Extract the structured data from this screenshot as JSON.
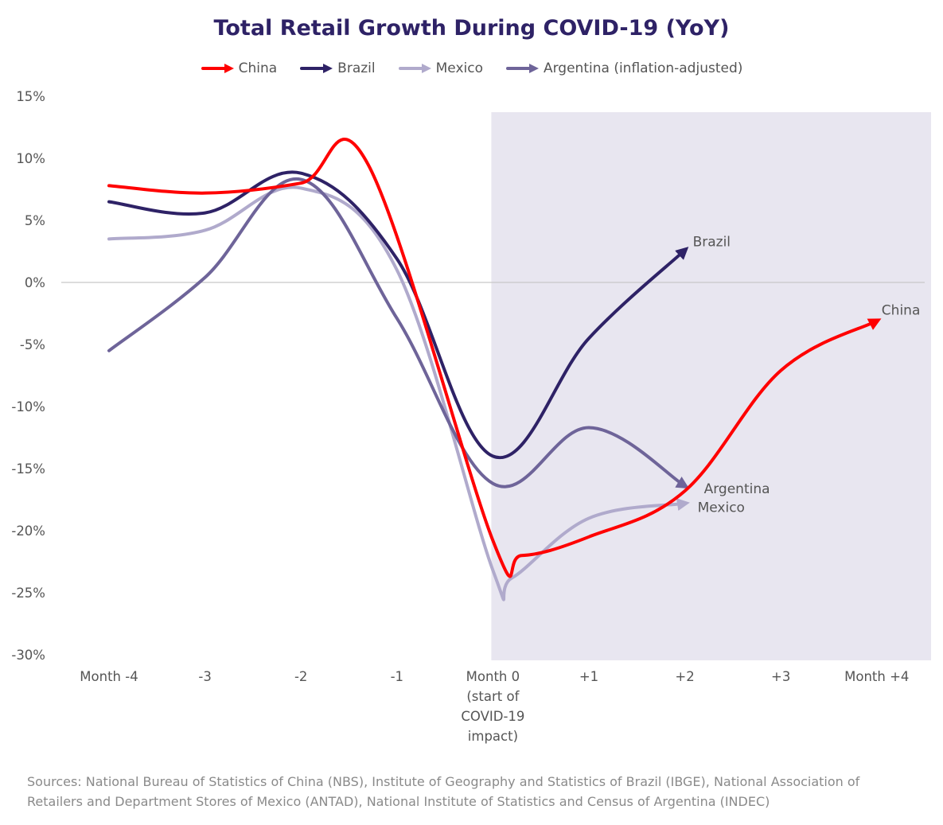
{
  "chart_data": {
    "type": "line",
    "title": "Total Retail Growth During COVID-19 (YoY)",
    "xlabel": "",
    "ylabel": "",
    "x_ticks": [
      {
        "value": -4,
        "lines": [
          "Month -4"
        ]
      },
      {
        "value": -3,
        "lines": [
          "-3"
        ]
      },
      {
        "value": -2,
        "lines": [
          "-2"
        ]
      },
      {
        "value": -1,
        "lines": [
          "-1"
        ]
      },
      {
        "value": 0,
        "lines": [
          "Month 0",
          "(start of",
          "COVID-19",
          "impact)"
        ]
      },
      {
        "value": 1,
        "lines": [
          "+1"
        ]
      },
      {
        "value": 2,
        "lines": [
          "+2"
        ]
      },
      {
        "value": 3,
        "lines": [
          "+3"
        ]
      },
      {
        "value": 4,
        "lines": [
          "Month +4"
        ]
      }
    ],
    "y_ticks": [
      "15%",
      "10%",
      "5%",
      "0%",
      "-5%",
      "-10%",
      "-15%",
      "-20%",
      "-25%",
      "-30%"
    ],
    "y_tick_values": [
      15,
      10,
      5,
      0,
      -5,
      -10,
      -15,
      -20,
      -25,
      -30
    ],
    "ylim": [
      -30,
      15
    ],
    "xlim": [
      -4,
      4
    ],
    "grid": false,
    "zero_line": true,
    "shaded_region": {
      "x_from": 0,
      "color": "#e8e6f0"
    },
    "legend_position": "top-center",
    "series": [
      {
        "name": "China",
        "color": "#ff0000",
        "end_label": "China",
        "points": [
          [
            -4,
            7.8
          ],
          [
            -3,
            7.2
          ],
          [
            -2,
            8.0
          ],
          [
            -1.3,
            9.5
          ],
          [
            0,
            -20.8
          ],
          [
            0.3,
            -22.0
          ],
          [
            1,
            -20.5
          ],
          [
            2,
            -16.8
          ],
          [
            3,
            -7.1
          ],
          [
            4,
            -3.1
          ]
        ]
      },
      {
        "name": "Brazil",
        "color": "#2e2266",
        "end_label": "Brazil",
        "points": [
          [
            -4,
            6.5
          ],
          [
            -3,
            5.6
          ],
          [
            -2,
            8.8
          ],
          [
            -1,
            1.9
          ],
          [
            0,
            -14.0
          ],
          [
            1,
            -4.5
          ],
          [
            2,
            2.6
          ]
        ]
      },
      {
        "name": "Mexico",
        "color": "#b0aacc",
        "end_label": "Mexico",
        "points": [
          [
            -4,
            3.5
          ],
          [
            -3,
            4.2
          ],
          [
            -2,
            7.6
          ],
          [
            -1,
            1.0
          ],
          [
            0,
            -23.2
          ],
          [
            0.2,
            -23.8
          ],
          [
            1,
            -19.0
          ],
          [
            2,
            -17.8
          ]
        ]
      },
      {
        "name": "Argentina (inflation-adjusted)",
        "color": "#6e6499",
        "end_label": "Argentina",
        "points": [
          [
            -4,
            -5.5
          ],
          [
            -3,
            0.4
          ],
          [
            -2,
            8.3
          ],
          [
            -1,
            -2.9
          ],
          [
            0,
            -16.2
          ],
          [
            1,
            -11.7
          ],
          [
            2,
            -16.4
          ]
        ]
      }
    ]
  },
  "source": "Sources: National Bureau of Statistics of China (NBS), Institute of Geography and Statistics of Brazil (IBGE), National Association of Retailers and Department Stores of Mexico (ANTAD), National Institute of Statistics and Census of Argentina (INDEC)"
}
